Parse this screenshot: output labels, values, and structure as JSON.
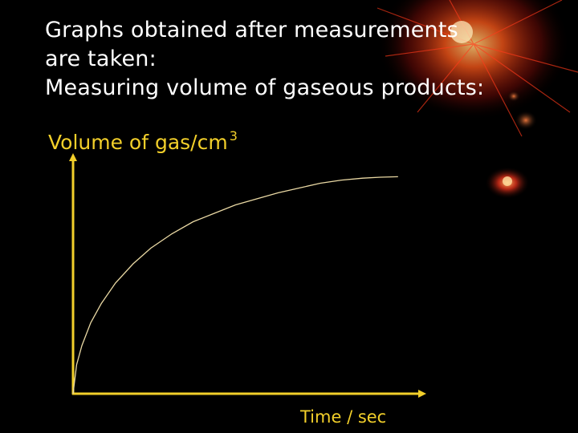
{
  "heading": {
    "line1": "Graphs obtained after measurements",
    "line2": "are taken:",
    "line3": "Measuring volume of gaseous products:"
  },
  "colors": {
    "background": "#000000",
    "heading_text": "#ffffff",
    "axis": "#f2cf2a",
    "curve": "#ead9a4",
    "glow": "#ff3a1a"
  },
  "chart_data": {
    "type": "line",
    "title": "",
    "xlabel": "Time / sec",
    "ylabel": "Volume of gas/cm",
    "ylabel_superscript": "3",
    "xlim": [
      0,
      10
    ],
    "ylim": [
      0,
      10
    ],
    "grid": false,
    "series": [
      {
        "x": [
          0,
          0.1,
          0.25,
          0.5,
          0.8,
          1.2,
          1.7,
          2.2,
          2.8,
          3.4,
          4.0,
          4.6,
          5.2,
          5.8,
          6.4,
          7.0,
          7.6,
          8.2,
          8.7,
          9.2
        ],
        "y": [
          0,
          1.2,
          2.0,
          2.95,
          3.75,
          4.6,
          5.4,
          6.05,
          6.65,
          7.15,
          7.5,
          7.85,
          8.1,
          8.35,
          8.55,
          8.75,
          8.88,
          8.96,
          9.0,
          9.02
        ]
      }
    ]
  }
}
